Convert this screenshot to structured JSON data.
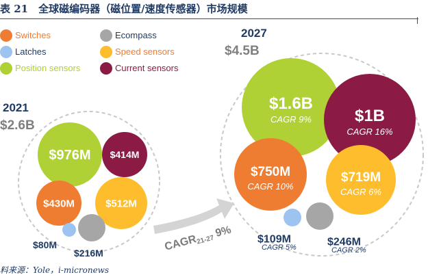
{
  "title": "表 21　全球磁编码器（磁位置/速度传感器）市场规模",
  "source": "料来源：Yole，i-micronews",
  "colors": {
    "title": "#1f3b64",
    "year": "#1f3b64",
    "total": "#7f7f7f",
    "small_label": "#1f3b64",
    "dashed": "#c8c8c8",
    "arrow": "#d4d4d4"
  },
  "legend": [
    {
      "name": "Switches",
      "color": "#ef7d31",
      "text_color": "#ef7d31"
    },
    {
      "name": "Latches",
      "color": "#9dc3f0",
      "text_color": "#1f3b64"
    },
    {
      "name": "Position sensors",
      "color": "#afd135",
      "text_color": "#afd135"
    },
    {
      "name": "Ecompass",
      "color": "#a6a6a6",
      "text_color": "#1f3b64"
    },
    {
      "name": "Speed sensors",
      "color": "#fdbd2c",
      "text_color": "#ef7d31"
    },
    {
      "name": "Current sensors",
      "color": "#8b1a44",
      "text_color": "#8b1a44"
    }
  ],
  "chart_data": {
    "type": "bubble",
    "unit": "USD",
    "groups": [
      {
        "year": "2021",
        "total": "$2.6B",
        "items": [
          {
            "name": "Position sensors",
            "label": "$976M",
            "value": 976,
            "color": "#afd135"
          },
          {
            "name": "Current sensors",
            "label": "$414M",
            "value": 414,
            "color": "#8b1a44"
          },
          {
            "name": "Switches",
            "label": "$430M",
            "value": 430,
            "color": "#ef7d31"
          },
          {
            "name": "Speed sensors",
            "label": "$512M",
            "value": 512,
            "color": "#fdbd2c"
          },
          {
            "name": "Latches",
            "label": "$80M",
            "value": 80,
            "color": "#9dc3f0"
          },
          {
            "name": "Ecompass",
            "label": "$216M",
            "value": 216,
            "color": "#a6a6a6"
          }
        ]
      },
      {
        "year": "2027",
        "total": "$4.5B",
        "items": [
          {
            "name": "Position sensors",
            "label": "$1.6B",
            "cagr": "CAGR 9%",
            "value": 1600,
            "color": "#afd135"
          },
          {
            "name": "Current sensors",
            "label": "$1B",
            "cagr": "CAGR 16%",
            "value": 1000,
            "color": "#8b1a44"
          },
          {
            "name": "Switches",
            "label": "$750M",
            "cagr": "CAGR 10%",
            "value": 750,
            "color": "#ef7d31"
          },
          {
            "name": "Speed sensors",
            "label": "$719M",
            "cagr": "CAGR 6%",
            "value": 719,
            "color": "#fdbd2c"
          },
          {
            "name": "Latches",
            "label": "$109M",
            "cagr": "CAGR 5%",
            "value": 109,
            "color": "#9dc3f0"
          },
          {
            "name": "Ecompass",
            "label": "$246M",
            "cagr": "CAGR 2%",
            "value": 246,
            "color": "#a6a6a6"
          }
        ]
      }
    ],
    "arrow": {
      "main": "CAGR",
      "sub": "21-27",
      "value": "9%"
    }
  }
}
